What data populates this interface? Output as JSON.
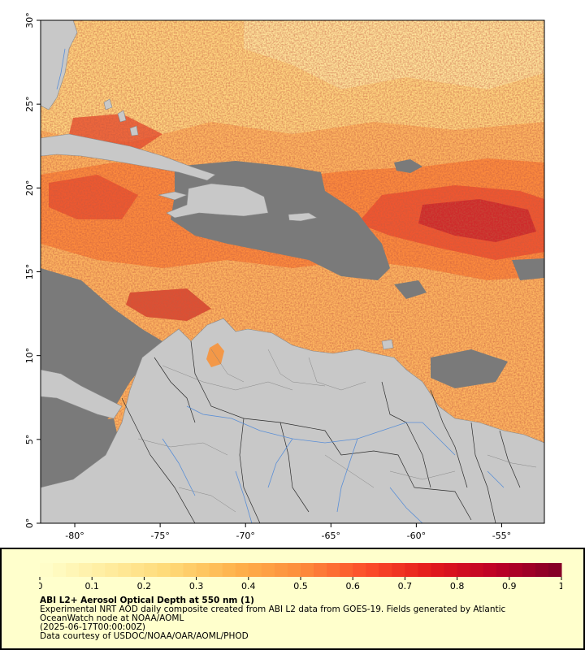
{
  "map": {
    "lon_range": [
      -82,
      -52.5
    ],
    "lat_range": [
      0,
      30
    ],
    "x_ticks": [
      "-80°",
      "-75°",
      "-70°",
      "-65°",
      "-60°",
      "-55°"
    ],
    "x_tick_values": [
      -80,
      -75,
      -70,
      -65,
      -60,
      -55
    ],
    "y_ticks": [
      "0°",
      "5°",
      "10°",
      "15°",
      "20°",
      "25°",
      "30°"
    ],
    "y_tick_values": [
      0,
      5,
      10,
      15,
      20,
      25,
      30
    ],
    "colors": {
      "land": "#c8c8c8",
      "no_data": "#7a7a7a",
      "border": "#2d2d2d",
      "river": "#5b8fd6"
    }
  },
  "legend": {
    "ticks": [
      "0",
      "0.1",
      "0.2",
      "0.3",
      "0.4",
      "0.5",
      "0.6",
      "0.7",
      "0.8",
      "0.9",
      "1"
    ],
    "colors": [
      "#ffffcc",
      "#ffeda0",
      "#fed976",
      "#feb24c",
      "#fd8d3c",
      "#fc4e2a",
      "#e31a1c",
      "#bd0026",
      "#800026"
    ],
    "title": "ABI L2+ Aerosol Optical Depth at 550 nm (1)",
    "description": "Experimental NRT AOD daily composite created from ABI L2 data from GOES-19. Fields generated by Atlantic OceanWatch node at NOAA/AOML",
    "date": "(2025-06-17T00:00:00Z)",
    "credit": "Data courtesy of USDOC/NOAA/OAR/AOML/PHOD"
  }
}
